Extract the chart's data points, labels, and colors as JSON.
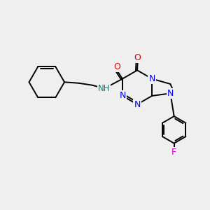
{
  "bg_color": "#efefef",
  "bond_color": "#000000",
  "N_color": "#0000ee",
  "O_color": "#dd0000",
  "F_color": "#cc00cc",
  "NH_color": "#008080",
  "line_width": 1.4,
  "figsize": [
    3.0,
    3.0
  ],
  "dpi": 100,
  "xlim": [
    0,
    10
  ],
  "ylim": [
    0,
    10
  ]
}
